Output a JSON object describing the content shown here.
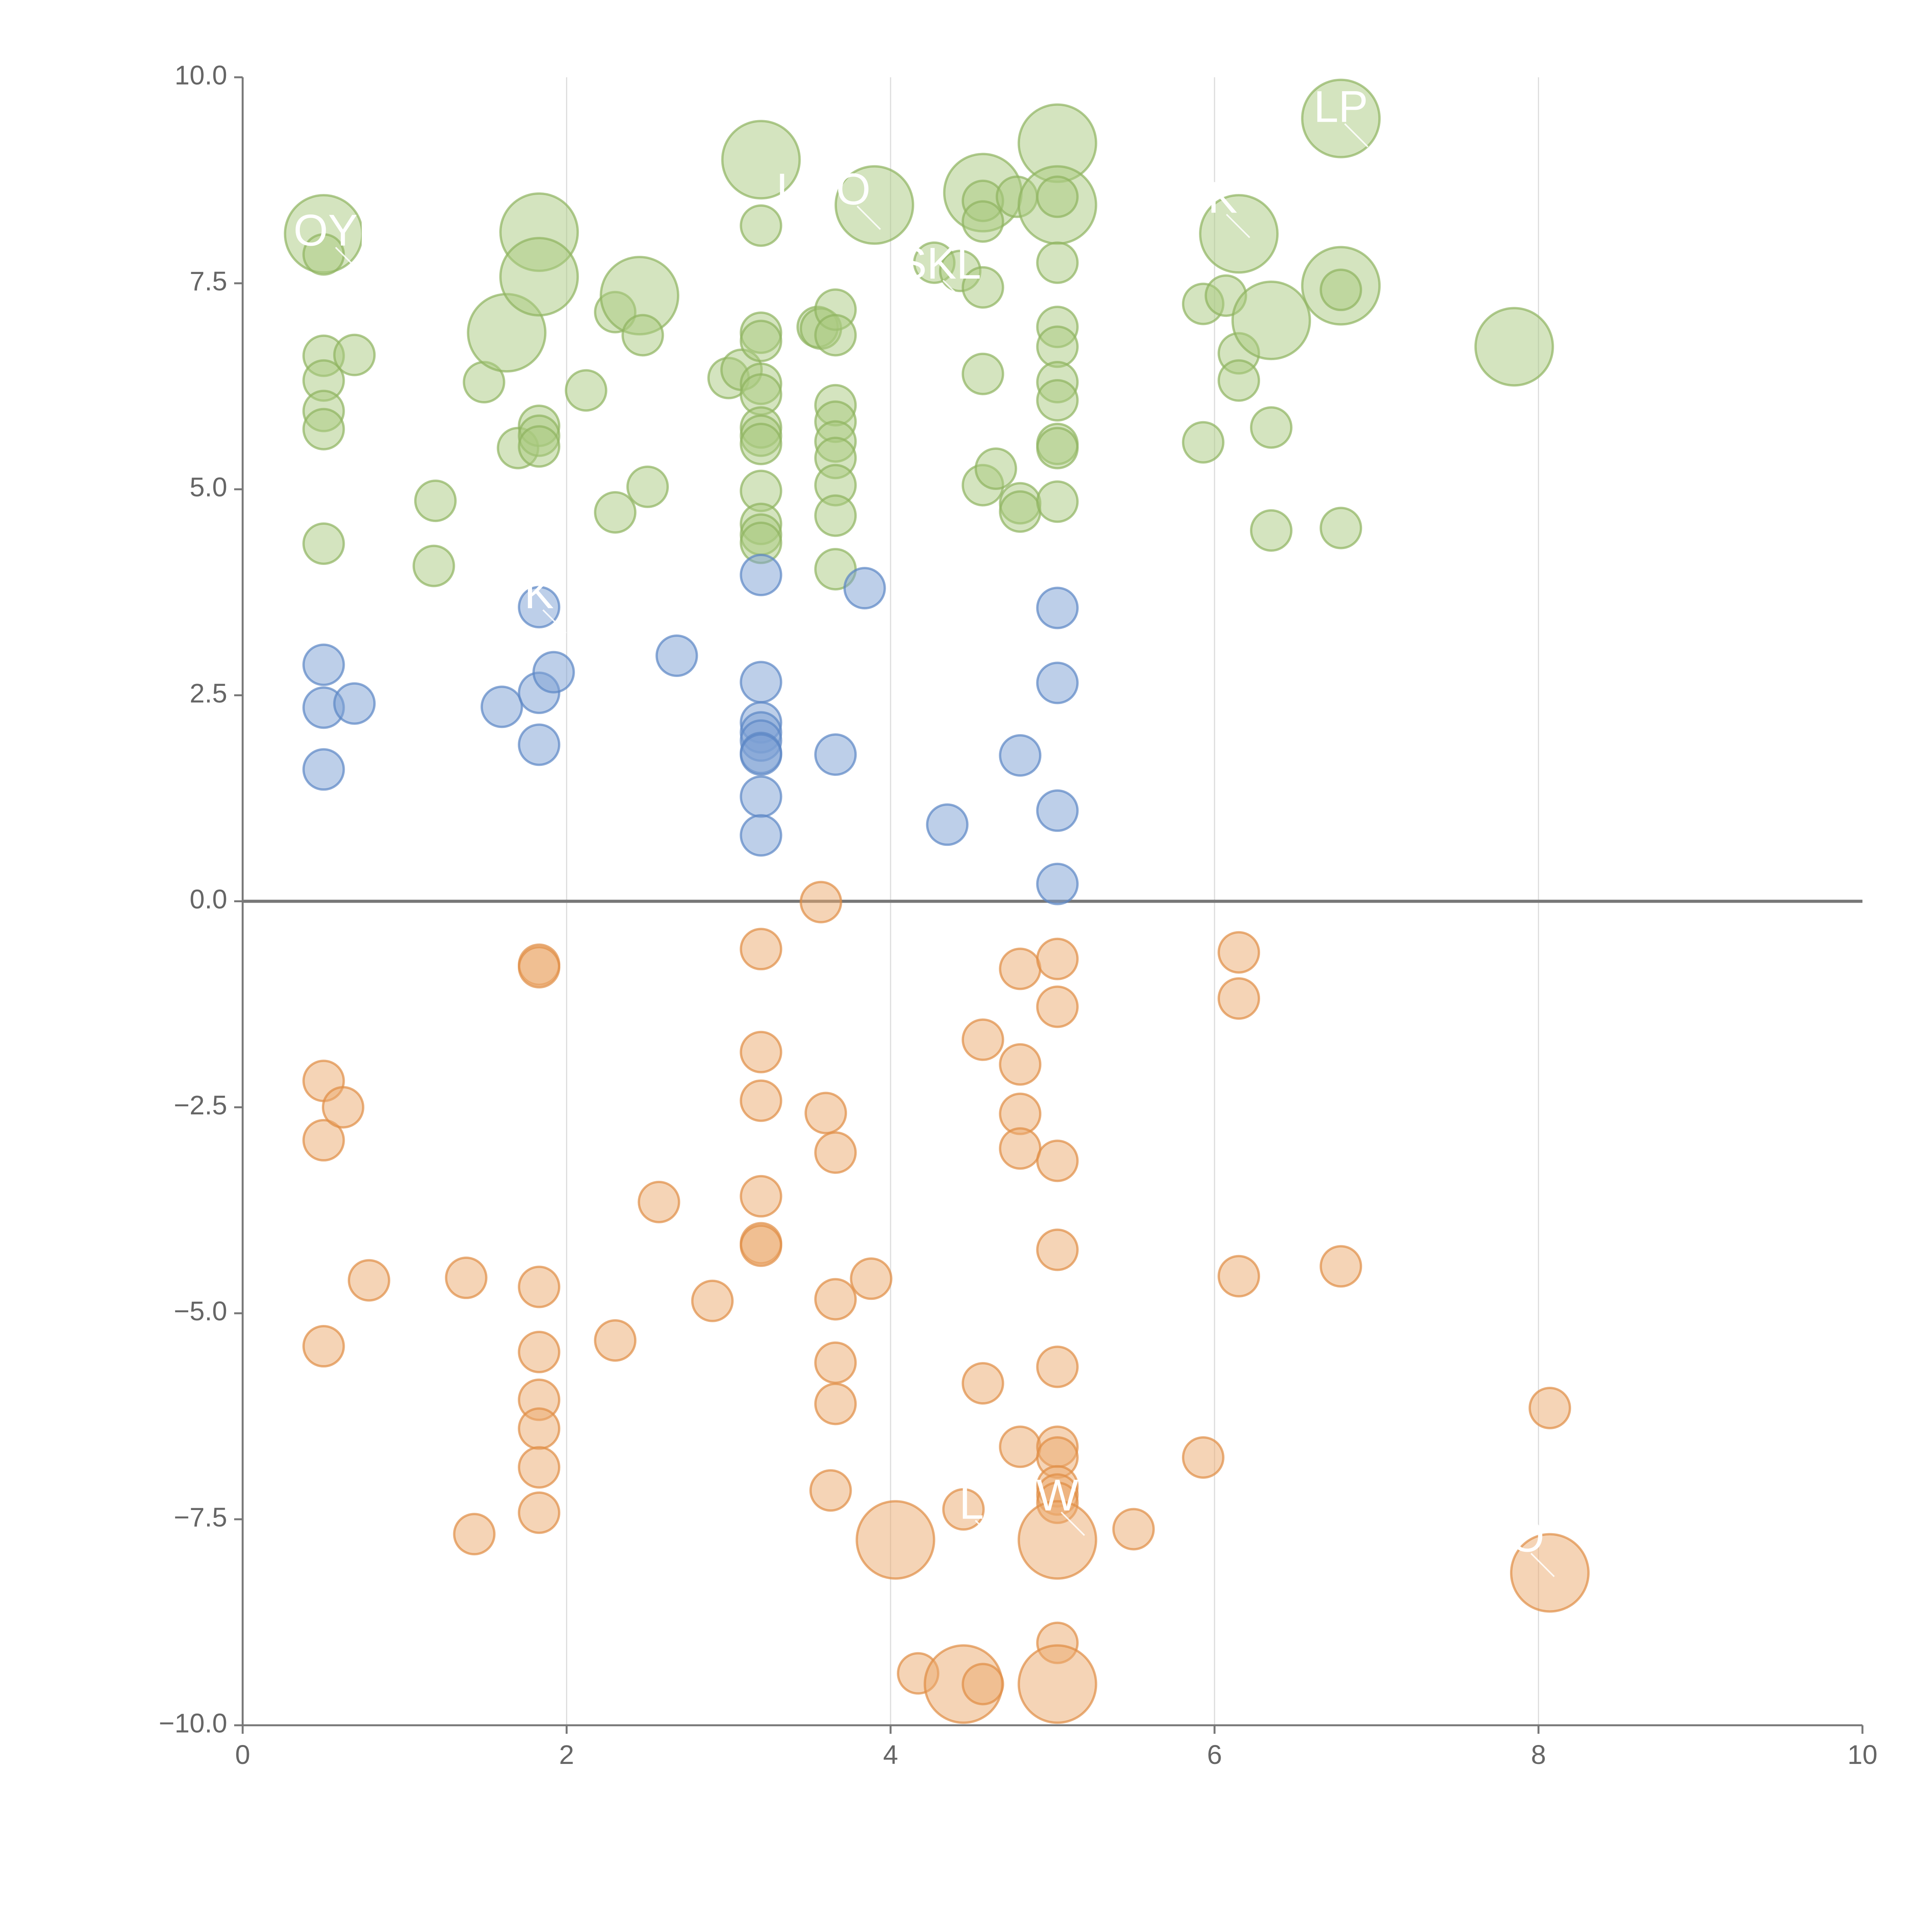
{
  "chart_data": {
    "type": "scatter",
    "title": "",
    "xlabel": "",
    "ylabel": "",
    "xlim": [
      0,
      10
    ],
    "ylim": [
      -10,
      10
    ],
    "x_ticks": [
      "0",
      "2",
      "4",
      "6",
      "8",
      "10"
    ],
    "y_ticks": [
      "10.0",
      "7.5",
      "5.0",
      "2.5",
      "0.0",
      "−2.5",
      "−5.0",
      "−7.5",
      "−10.0"
    ],
    "grid": "vertical lines",
    "zero_line": 0,
    "colors": {
      "green_fill": "#a9c97f",
      "green_stroke": "#8fb360",
      "blue_fill": "#7b9fd3",
      "blue_stroke": "#5b86c4",
      "orange_fill": "#eba96e",
      "orange_stroke": "#df8d45",
      "axis": "#777777",
      "grid": "#dddddd",
      "zero": "#777777"
    },
    "labels": [
      {
        "text": "OYI",
        "x": 0.55,
        "y": 8.1
      },
      {
        "text": "I",
        "x": 3.33,
        "y": 8.6
      },
      {
        "text": "O",
        "x": 3.77,
        "y": 8.6
      },
      {
        "text": "LP",
        "x": 6.78,
        "y": 9.6
      },
      {
        "text": "K",
        "x": 6.05,
        "y": 8.5
      },
      {
        "text": "SKL",
        "x": 4.3,
        "y": 7.7
      },
      {
        "text": "K",
        "x": 1.83,
        "y": 3.7
      },
      {
        "text": "L",
        "x": 4.5,
        "y": -7.35
      },
      {
        "text": "W",
        "x": 5.03,
        "y": -7.25
      },
      {
        "text": "O",
        "x": 7.93,
        "y": -7.75
      }
    ],
    "series": [
      {
        "name": "green",
        "points": [
          [
            0.5,
            8.1,
            2
          ],
          [
            0.5,
            7.85,
            0
          ],
          [
            0.5,
            6.62,
            0
          ],
          [
            0.5,
            6.32,
            0
          ],
          [
            0.5,
            5.95,
            0
          ],
          [
            0.5,
            5.73,
            0
          ],
          [
            0.5,
            4.34,
            0
          ],
          [
            0.69,
            6.63,
            0
          ],
          [
            1.19,
            4.86,
            0
          ],
          [
            1.18,
            4.07,
            0
          ],
          [
            1.49,
            6.3,
            0
          ],
          [
            1.63,
            6.9,
            2
          ],
          [
            1.7,
            5.5,
            0
          ],
          [
            1.83,
            8.12,
            2
          ],
          [
            1.83,
            7.58,
            2
          ],
          [
            1.83,
            5.77,
            0
          ],
          [
            1.83,
            5.65,
            0
          ],
          [
            1.83,
            5.52,
            0
          ],
          [
            2.12,
            6.2,
            0
          ],
          [
            2.3,
            4.72,
            0
          ],
          [
            2.3,
            7.15,
            0
          ],
          [
            2.45,
            7.35,
            2
          ],
          [
            2.47,
            6.87,
            0
          ],
          [
            2.5,
            5.03,
            0
          ],
          [
            3.0,
            6.35,
            0
          ],
          [
            3.08,
            6.45,
            0
          ],
          [
            3.2,
            9.0,
            2
          ],
          [
            3.2,
            8.2,
            0
          ],
          [
            3.2,
            6.9,
            0
          ],
          [
            3.2,
            6.8,
            0
          ],
          [
            3.2,
            6.28,
            0
          ],
          [
            3.2,
            6.15,
            0
          ],
          [
            3.2,
            5.75,
            0
          ],
          [
            3.2,
            5.65,
            0
          ],
          [
            3.2,
            5.55,
            0
          ],
          [
            3.2,
            4.98,
            0
          ],
          [
            3.2,
            4.58,
            0
          ],
          [
            3.2,
            4.45,
            0
          ],
          [
            3.2,
            4.35,
            0
          ],
          [
            3.55,
            6.97,
            0
          ],
          [
            3.57,
            6.95,
            0
          ],
          [
            3.66,
            7.18,
            0
          ],
          [
            3.66,
            6.87,
            0
          ],
          [
            3.66,
            6.02,
            0
          ],
          [
            3.66,
            5.82,
            0
          ],
          [
            3.66,
            5.58,
            0
          ],
          [
            3.66,
            5.38,
            0
          ],
          [
            3.66,
            5.05,
            0
          ],
          [
            3.66,
            4.68,
            0
          ],
          [
            3.66,
            4.03,
            0
          ],
          [
            3.9,
            8.45,
            2
          ],
          [
            4.27,
            7.75,
            0
          ],
          [
            4.43,
            7.65,
            0
          ],
          [
            4.57,
            8.6,
            2
          ],
          [
            4.57,
            8.5,
            0
          ],
          [
            4.57,
            8.25,
            0
          ],
          [
            4.57,
            7.45,
            0
          ],
          [
            4.57,
            6.4,
            0
          ],
          [
            4.57,
            5.05,
            0
          ],
          [
            4.65,
            5.25,
            0
          ],
          [
            4.78,
            8.55,
            0
          ],
          [
            4.8,
            4.83,
            0
          ],
          [
            4.8,
            4.73,
            0
          ],
          [
            5.03,
            9.2,
            2
          ],
          [
            5.03,
            8.45,
            2
          ],
          [
            5.03,
            8.55,
            0
          ],
          [
            5.03,
            7.75,
            0
          ],
          [
            5.03,
            6.97,
            0
          ],
          [
            5.03,
            6.73,
            0
          ],
          [
            5.03,
            6.3,
            0
          ],
          [
            5.03,
            6.08,
            0
          ],
          [
            5.03,
            5.55,
            0
          ],
          [
            5.03,
            5.5,
            0
          ],
          [
            5.03,
            4.85,
            0
          ],
          [
            5.93,
            7.25,
            0
          ],
          [
            5.93,
            5.57,
            0
          ],
          [
            6.07,
            7.35,
            0
          ],
          [
            6.15,
            8.1,
            2
          ],
          [
            6.15,
            6.65,
            0
          ],
          [
            6.15,
            6.32,
            0
          ],
          [
            6.35,
            7.05,
            2
          ],
          [
            6.35,
            5.75,
            0
          ],
          [
            6.35,
            4.5,
            0
          ],
          [
            6.78,
            9.5,
            2
          ],
          [
            6.78,
            7.47,
            2
          ],
          [
            6.78,
            7.42,
            0
          ],
          [
            6.78,
            4.53,
            0
          ],
          [
            7.85,
            6.73,
            2
          ]
        ]
      },
      {
        "name": "blue",
        "points": [
          [
            0.5,
            2.87,
            0
          ],
          [
            0.5,
            2.35,
            0
          ],
          [
            0.5,
            1.6,
            0
          ],
          [
            0.69,
            2.4,
            0
          ],
          [
            1.6,
            2.36,
            0
          ],
          [
            1.83,
            3.57,
            0
          ],
          [
            1.83,
            2.53,
            0
          ],
          [
            1.83,
            1.9,
            0
          ],
          [
            1.92,
            2.78,
            0
          ],
          [
            2.68,
            2.98,
            0
          ],
          [
            3.2,
            3.96,
            0
          ],
          [
            3.2,
            2.66,
            0
          ],
          [
            3.2,
            2.17,
            0
          ],
          [
            3.2,
            2.05,
            0
          ],
          [
            3.2,
            1.95,
            0
          ],
          [
            3.2,
            1.8,
            0
          ],
          [
            3.2,
            1.78,
            0
          ],
          [
            3.2,
            1.27,
            0
          ],
          [
            3.2,
            0.8,
            0
          ],
          [
            3.66,
            1.78,
            0
          ],
          [
            3.84,
            3.8,
            0
          ],
          [
            4.35,
            0.93,
            0
          ],
          [
            4.8,
            1.77,
            0
          ],
          [
            5.03,
            3.56,
            0
          ],
          [
            5.03,
            2.65,
            0
          ],
          [
            5.03,
            1.1,
            0
          ],
          [
            5.03,
            0.21,
            0
          ]
        ]
      },
      {
        "name": "orange",
        "points": [
          [
            0.5,
            -2.18,
            0
          ],
          [
            0.5,
            -2.9,
            0
          ],
          [
            0.5,
            -5.4,
            0
          ],
          [
            0.62,
            -2.5,
            0
          ],
          [
            0.78,
            -4.6,
            0
          ],
          [
            1.38,
            -4.57,
            0
          ],
          [
            1.43,
            -7.68,
            0
          ],
          [
            1.83,
            -0.77,
            0
          ],
          [
            1.83,
            -0.8,
            0
          ],
          [
            1.83,
            -4.68,
            0
          ],
          [
            1.83,
            -5.47,
            0
          ],
          [
            1.83,
            -6.05,
            0
          ],
          [
            1.83,
            -6.4,
            0
          ],
          [
            1.83,
            -6.87,
            0
          ],
          [
            1.83,
            -7.42,
            0
          ],
          [
            2.3,
            -5.33,
            0
          ],
          [
            2.57,
            -3.65,
            0
          ],
          [
            2.9,
            -4.85,
            0
          ],
          [
            3.2,
            -0.58,
            0
          ],
          [
            3.2,
            -1.83,
            0
          ],
          [
            3.2,
            -2.42,
            0
          ],
          [
            3.2,
            -3.58,
            0
          ],
          [
            3.2,
            -4.15,
            0
          ],
          [
            3.2,
            -4.18,
            0
          ],
          [
            3.57,
            -0.01,
            0
          ],
          [
            3.6,
            -2.57,
            0
          ],
          [
            3.66,
            -3.05,
            0
          ],
          [
            3.66,
            -4.83,
            0
          ],
          [
            3.66,
            -5.6,
            0
          ],
          [
            3.66,
            -6.1,
            0
          ],
          [
            3.63,
            -7.15,
            0
          ],
          [
            3.88,
            -4.58,
            0
          ],
          [
            4.03,
            -7.75,
            2
          ],
          [
            4.17,
            -9.37,
            0
          ],
          [
            4.45,
            -7.38,
            0
          ],
          [
            4.45,
            -9.5,
            2
          ],
          [
            4.57,
            -1.68,
            0
          ],
          [
            4.57,
            -5.85,
            0
          ],
          [
            4.57,
            -9.5,
            0
          ],
          [
            4.8,
            -0.82,
            0
          ],
          [
            4.8,
            -1.98,
            0
          ],
          [
            4.8,
            -2.58,
            0
          ],
          [
            4.8,
            -3.0,
            0
          ],
          [
            4.8,
            -6.62,
            0
          ],
          [
            5.03,
            -0.7,
            0
          ],
          [
            5.03,
            -1.28,
            0
          ],
          [
            5.03,
            -3.15,
            0
          ],
          [
            5.03,
            -4.23,
            0
          ],
          [
            5.03,
            -5.65,
            0
          ],
          [
            5.03,
            -6.62,
            0
          ],
          [
            5.03,
            -6.75,
            0
          ],
          [
            5.03,
            -7.1,
            0
          ],
          [
            5.03,
            -7.2,
            0
          ],
          [
            5.03,
            -7.3,
            0
          ],
          [
            5.03,
            -7.75,
            2
          ],
          [
            5.03,
            -9.0,
            0
          ],
          [
            5.03,
            -9.5,
            2
          ],
          [
            5.5,
            -7.62,
            0
          ],
          [
            5.93,
            -6.75,
            0
          ],
          [
            6.15,
            -0.62,
            0
          ],
          [
            6.15,
            -1.18,
            0
          ],
          [
            6.15,
            -4.55,
            0
          ],
          [
            6.78,
            -4.43,
            0
          ],
          [
            8.07,
            -6.15,
            0
          ],
          [
            8.07,
            -8.15,
            2
          ]
        ]
      }
    ]
  }
}
